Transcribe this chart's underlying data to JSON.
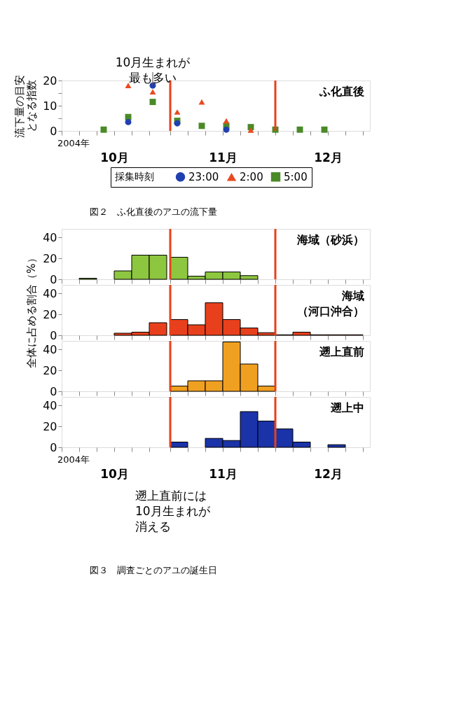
{
  "chart_data": [
    {
      "type": "scatter",
      "title": "ふ化直後",
      "ylabel": "流下量の目安となる指数",
      "legend_title": "採集時刻",
      "legend": "bottom",
      "x": [
        "2004-10-13",
        "2004-10-20",
        "2004-10-27",
        "2004-11-03",
        "2004-11-10",
        "2004-11-17",
        "2004-11-24",
        "2004-12-01",
        "2004-12-08",
        "2004-12-15"
      ],
      "series": [
        {
          "name": "23:00",
          "color": "#2040b0",
          "marker": "circle",
          "values": [
            null,
            3.5,
            18,
            3,
            null,
            0.5,
            null,
            null,
            null,
            null
          ]
        },
        {
          "name": "2:00",
          "color": "#e84a20",
          "marker": "triangle",
          "values": [
            null,
            18,
            15.5,
            7.5,
            11.5,
            4,
            0.3,
            null,
            null,
            null
          ]
        },
        {
          "name": "5:00",
          "color": "#4a8a28",
          "marker": "square",
          "values": [
            0.5,
            5.5,
            11.5,
            4,
            2,
            2,
            1.5,
            0.5,
            0.5,
            0.5
          ]
        }
      ],
      "xlim": [
        "2004-10-01",
        "2004-12-28"
      ],
      "ylim": [
        0,
        20
      ],
      "xticks": [
        {
          "value": "2004-10-01",
          "label": null
        },
        {
          "value": "2004-10-06",
          "label": null
        },
        {
          "value": "2004-10-11",
          "label": null
        },
        {
          "value": "2004-10-16",
          "label": "10月"
        },
        {
          "value": "2004-10-21",
          "label": null
        },
        {
          "value": "2004-10-26",
          "label": null
        },
        {
          "value": "2004-11-01",
          "label": null
        },
        {
          "value": "2004-11-06",
          "label": null
        },
        {
          "value": "2004-11-11",
          "label": null
        },
        {
          "value": "2004-11-16",
          "label": "11月"
        },
        {
          "value": "2004-11-21",
          "label": null
        },
        {
          "value": "2004-11-26",
          "label": null
        },
        {
          "value": "2004-12-01",
          "label": null
        },
        {
          "value": "2004-12-06",
          "label": null
        },
        {
          "value": "2004-12-11",
          "label": null
        },
        {
          "value": "2004-12-16",
          "label": "12月"
        },
        {
          "value": "2004-12-21",
          "label": null
        },
        {
          "value": "2004-12-26",
          "label": null
        }
      ],
      "yticks": [
        0,
        {
          "value": 5,
          "label": null
        },
        10,
        {
          "value": 15,
          "label": null
        },
        20
      ],
      "ref_lines": [
        {
          "axis": "x",
          "value": "2004-11-01",
          "color": "#e8401c"
        },
        {
          "axis": "x",
          "value": "2004-12-01",
          "color": "#e8401c"
        }
      ],
      "annotations": [
        "2004年",
        {
          "text": "10月生まれが最も多い",
          "x": "2004-10-27",
          "y": 18
        },
        "図２　ふ化直後のアユの流下量"
      ]
    },
    {
      "type": "bar",
      "title": "海域（砂浜）",
      "color": "#8dc63f",
      "tick_labels": "y",
      "x": [
        "2004-10-08T12:00",
        "2004-10-13T12:00",
        "2004-10-18T12:00",
        "2004-10-23T12:00",
        "2004-10-28T12:00",
        "2004-11-03T12:00",
        "2004-11-08T12:00",
        "2004-11-13T12:00",
        "2004-11-18T12:00",
        "2004-11-23T12:00"
      ],
      "values": [
        1,
        null,
        8,
        23,
        23,
        21,
        3,
        7,
        7,
        3.5
      ],
      "xlim": [
        "2004-10-01",
        "2004-12-28"
      ],
      "ylim": [
        0,
        48
      ],
      "yticks": [
        0,
        20,
        40
      ],
      "xticks": [
        {
          "value": "2004-10-01",
          "label": null
        },
        {
          "value": "2004-10-06",
          "label": null
        },
        {
          "value": "2004-10-11",
          "label": null
        },
        {
          "value": "2004-10-16",
          "label": null
        },
        {
          "value": "2004-10-21",
          "label": null
        },
        {
          "value": "2004-10-26",
          "label": null
        },
        {
          "value": "2004-11-01",
          "label": null
        },
        {
          "value": "2004-11-06",
          "label": null
        },
        {
          "value": "2004-11-11",
          "label": null
        },
        {
          "value": "2004-11-16",
          "label": null
        },
        {
          "value": "2004-11-21",
          "label": null
        },
        {
          "value": "2004-11-26",
          "label": null
        },
        {
          "value": "2004-12-01",
          "label": null
        },
        {
          "value": "2004-12-06",
          "label": null
        },
        {
          "value": "2004-12-11",
          "label": null
        },
        {
          "value": "2004-12-16",
          "label": null
        },
        {
          "value": "2004-12-21",
          "label": null
        },
        {
          "value": "2004-12-26",
          "label": null
        }
      ],
      "ref_lines": [
        {
          "axis": "x",
          "value": "2004-11-01",
          "color": "#e8401c"
        },
        {
          "axis": "x",
          "value": "2004-12-01",
          "color": "#e8401c"
        }
      ]
    },
    {
      "type": "bar",
      "title": "海域（河口沖合）",
      "color": "#e8401c",
      "tick_labels": "y",
      "ylabel": "全体に占める割合（%）",
      "x": [
        "2004-10-18T12:00",
        "2004-10-23T12:00",
        "2004-10-28T12:00",
        "2004-11-03T12:00",
        "2004-11-08T12:00",
        "2004-11-13T12:00",
        "2004-11-18T12:00",
        "2004-11-23T12:00",
        "2004-11-28T12:00",
        "2004-12-03T12:00",
        "2004-12-08T12:00",
        "2004-12-13T12:00",
        "2004-12-18T12:00",
        "2004-12-23T12:00"
      ],
      "values": [
        2,
        3,
        12,
        15,
        10,
        31,
        15,
        7,
        2.5,
        0.5,
        3,
        0.5,
        0.5,
        0.5
      ],
      "xlim": [
        "2004-10-01",
        "2004-12-28"
      ],
      "ylim": [
        0,
        48
      ],
      "yticks": [
        0,
        20,
        40
      ],
      "xticks": [
        {
          "value": "2004-10-01",
          "label": null
        },
        {
          "value": "2004-10-06",
          "label": null
        },
        {
          "value": "2004-10-11",
          "label": null
        },
        {
          "value": "2004-10-16",
          "label": null
        },
        {
          "value": "2004-10-21",
          "label": null
        },
        {
          "value": "2004-10-26",
          "label": null
        },
        {
          "value": "2004-11-01",
          "label": null
        },
        {
          "value": "2004-11-06",
          "label": null
        },
        {
          "value": "2004-11-11",
          "label": null
        },
        {
          "value": "2004-11-16",
          "label": null
        },
        {
          "value": "2004-11-21",
          "label": null
        },
        {
          "value": "2004-11-26",
          "label": null
        },
        {
          "value": "2004-12-01",
          "label": null
        },
        {
          "value": "2004-12-06",
          "label": null
        },
        {
          "value": "2004-12-11",
          "label": null
        },
        {
          "value": "2004-12-16",
          "label": null
        },
        {
          "value": "2004-12-21",
          "label": null
        },
        {
          "value": "2004-12-26",
          "label": null
        }
      ],
      "ref_lines": [
        {
          "axis": "x",
          "value": "2004-11-01",
          "color": "#e8401c"
        },
        {
          "axis": "x",
          "value": "2004-12-01",
          "color": "#e8401c"
        }
      ]
    },
    {
      "type": "bar",
      "title": "遡上直前",
      "color": "#f0a020",
      "tick_labels": "y",
      "x": [
        "2004-11-03T12:00",
        "2004-11-08T12:00",
        "2004-11-13T12:00",
        "2004-11-18T12:00",
        "2004-11-23T12:00",
        "2004-11-28T12:00"
      ],
      "values": [
        5,
        10,
        10,
        47,
        26,
        5
      ],
      "xlim": [
        "2004-10-01",
        "2004-12-28"
      ],
      "ylim": [
        0,
        48
      ],
      "yticks": [
        0,
        20,
        40
      ],
      "xticks": [
        {
          "value": "2004-10-01",
          "label": null
        },
        {
          "value": "2004-10-06",
          "label": null
        },
        {
          "value": "2004-10-11",
          "label": null
        },
        {
          "value": "2004-10-16",
          "label": null
        },
        {
          "value": "2004-10-21",
          "label": null
        },
        {
          "value": "2004-10-26",
          "label": null
        },
        {
          "value": "2004-11-01",
          "label": null
        },
        {
          "value": "2004-11-06",
          "label": null
        },
        {
          "value": "2004-11-11",
          "label": null
        },
        {
          "value": "2004-11-16",
          "label": null
        },
        {
          "value": "2004-11-21",
          "label": null
        },
        {
          "value": "2004-11-26",
          "label": null
        },
        {
          "value": "2004-12-01",
          "label": null
        },
        {
          "value": "2004-12-06",
          "label": null
        },
        {
          "value": "2004-12-11",
          "label": null
        },
        {
          "value": "2004-12-16",
          "label": null
        },
        {
          "value": "2004-12-21",
          "label": null
        },
        {
          "value": "2004-12-26",
          "label": null
        }
      ],
      "ref_lines": [
        {
          "axis": "x",
          "value": "2004-11-01",
          "color": "#e8401c"
        },
        {
          "axis": "x",
          "value": "2004-12-01",
          "color": "#e8401c"
        }
      ]
    },
    {
      "type": "bar",
      "title": "遡上中",
      "color": "#1a33a8",
      "x": [
        "2004-11-03T12:00",
        "2004-11-08T12:00",
        "2004-11-13T12:00",
        "2004-11-18T12:00",
        "2004-11-23T12:00",
        "2004-11-28T12:00",
        "2004-12-03T12:00",
        "2004-12-08T12:00",
        "2004-12-13T12:00",
        "2004-12-18T12:00"
      ],
      "values": [
        5,
        null,
        8.5,
        6.5,
        34,
        25,
        17.5,
        5,
        null,
        2.5
      ],
      "xlim": [
        "2004-10-01",
        "2004-12-28"
      ],
      "ylim": [
        0,
        48
      ],
      "yticks": [
        0,
        20,
        40
      ],
      "xticks": [
        {
          "value": "2004-10-01",
          "label": null
        },
        {
          "value": "2004-10-06",
          "label": null
        },
        {
          "value": "2004-10-11",
          "label": null
        },
        {
          "value": "2004-10-16",
          "label": "10月"
        },
        {
          "value": "2004-10-21",
          "label": null
        },
        {
          "value": "2004-10-26",
          "label": null
        },
        {
          "value": "2004-11-01",
          "label": null
        },
        {
          "value": "2004-11-06",
          "label": null
        },
        {
          "value": "2004-11-11",
          "label": null
        },
        {
          "value": "2004-11-16",
          "label": "11月"
        },
        {
          "value": "2004-11-21",
          "label": null
        },
        {
          "value": "2004-11-26",
          "label": null
        },
        {
          "value": "2004-12-01",
          "label": null
        },
        {
          "value": "2004-12-06",
          "label": null
        },
        {
          "value": "2004-12-11",
          "label": null
        },
        {
          "value": "2004-12-16",
          "label": "12月"
        },
        {
          "value": "2004-12-21",
          "label": null
        },
        {
          "value": "2004-12-26",
          "label": null
        }
      ],
      "ref_lines": [
        {
          "axis": "x",
          "value": "2004-11-01",
          "color": "#e8401c"
        },
        {
          "axis": "x",
          "value": "2004-12-01",
          "color": "#e8401c"
        }
      ],
      "annotations": [
        "2004年",
        "遡上直前には10月生まれが消える",
        "図３　調査ごとのアユの誕生日"
      ]
    }
  ]
}
